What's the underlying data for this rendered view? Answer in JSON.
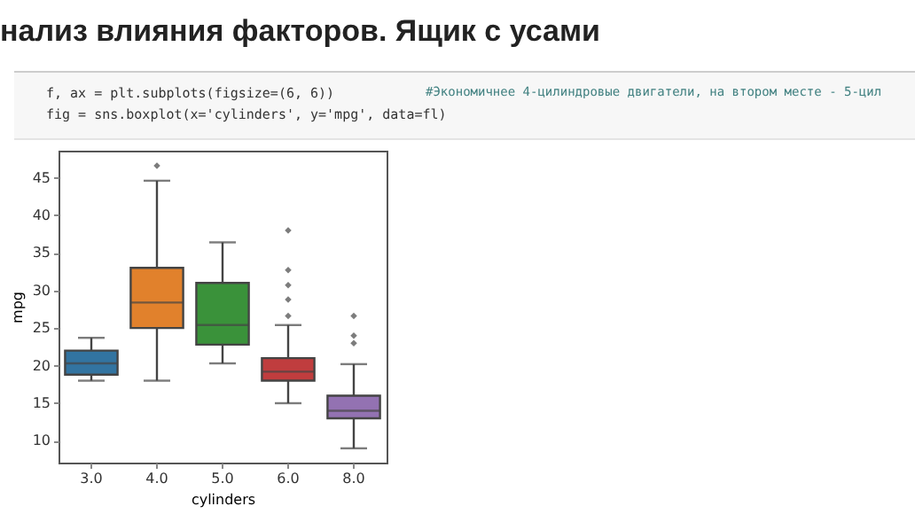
{
  "chart_data": {
    "type": "box",
    "title": "нализ влияния факторов. Ящик с усами",
    "annotations": [
      "f, ax = plt.subplots(figsize=(6, 6))",
      "fig = sns.boxplot(x='cylinders', y='mpg', data=fl)",
      "#Экономичнее 4-цилиндровые двигатели, на втором месте - 5-цил"
    ],
    "xlabel": "cylinders",
    "ylabel": "mpg",
    "categories": [
      "3.0",
      "4.0",
      "5.0",
      "6.0",
      "8.0"
    ],
    "colors": [
      "#3274a1",
      "#e1812c",
      "#3a923a",
      "#c03d3e",
      "#9372b2"
    ],
    "boxes": [
      {
        "low": 18,
        "q1": 18.8,
        "median": 20.3,
        "q3": 22,
        "high": 23.7
      },
      {
        "low": 18,
        "q1": 25,
        "median": 28.4,
        "q3": 33,
        "high": 44.6,
        "outliers": [
          46.6
        ]
      },
      {
        "low": 20.3,
        "q1": 22.8,
        "median": 25.4,
        "q3": 31,
        "high": 36.4
      },
      {
        "low": 15,
        "q1": 18,
        "median": 19.2,
        "q3": 21,
        "high": 25.4,
        "outliers": [
          26.6,
          28.8,
          30.7,
          32.7,
          38
        ]
      },
      {
        "low": 9,
        "q1": 13,
        "median": 14,
        "q3": 16,
        "high": 20.2,
        "outliers": [
          23,
          24,
          26.6
        ]
      }
    ],
    "ylim": [
      7.1,
      48.6
    ],
    "yticks": [
      10,
      15,
      20,
      25,
      30,
      35,
      40,
      45
    ],
    "grid": false,
    "legend": false
  }
}
